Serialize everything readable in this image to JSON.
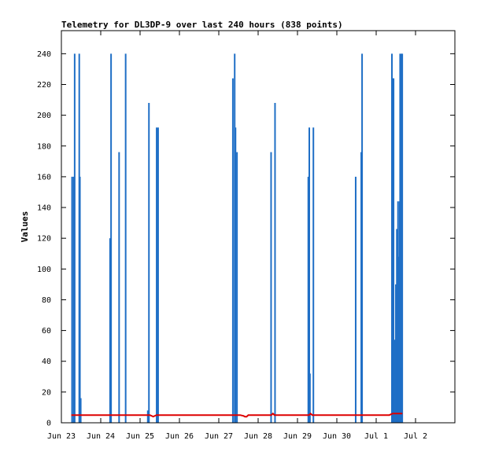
{
  "chart_data": {
    "type": "bar",
    "title": "Telemetry for DL3DP-9 over last 240 hours (838 points)",
    "xlabel": "",
    "ylabel": "Values",
    "xlim": [
      0,
      240
    ],
    "ylim": [
      0,
      255
    ],
    "x_ticks": [
      {
        "x": 0,
        "label": "Jun 23"
      },
      {
        "x": 24,
        "label": "Jun 24"
      },
      {
        "x": 48,
        "label": "Jun 25"
      },
      {
        "x": 72,
        "label": "Jun 26"
      },
      {
        "x": 96,
        "label": "Jun 27"
      },
      {
        "x": 120,
        "label": "Jun 28"
      },
      {
        "x": 144,
        "label": "Jun 29"
      },
      {
        "x": 168,
        "label": "Jun 30"
      },
      {
        "x": 192,
        "label": "Jul 1"
      },
      {
        "x": 216,
        "label": "Jul 2"
      }
    ],
    "y_ticks": [
      0,
      20,
      40,
      60,
      80,
      100,
      120,
      140,
      160,
      180,
      200,
      220,
      240
    ],
    "grid": false,
    "colors": {
      "bars": "#1f6fc6",
      "line": "#dd0000",
      "baseline": "#000000",
      "frame": "#000000"
    },
    "series": [
      {
        "type": "bar",
        "values": [
          {
            "x": 6.5,
            "y": 160
          },
          {
            "x": 7.5,
            "y": 160
          },
          {
            "x": 8.1,
            "y": 240
          },
          {
            "x": 10.9,
            "y": 240
          },
          {
            "x": 11.3,
            "y": 160
          },
          {
            "x": 11.8,
            "y": 16
          },
          {
            "x": 29.7,
            "y": 120
          },
          {
            "x": 30.3,
            "y": 240
          },
          {
            "x": 35.2,
            "y": 176
          },
          {
            "x": 39.2,
            "y": 240
          },
          {
            "x": 52.7,
            "y": 8
          },
          {
            "x": 53.4,
            "y": 208
          },
          {
            "x": 58.1,
            "y": 192
          },
          {
            "x": 59.0,
            "y": 192
          },
          {
            "x": 104.6,
            "y": 224
          },
          {
            "x": 105.7,
            "y": 240
          },
          {
            "x": 106.2,
            "y": 192
          },
          {
            "x": 107.1,
            "y": 176
          },
          {
            "x": 127.9,
            "y": 176
          },
          {
            "x": 130.3,
            "y": 208
          },
          {
            "x": 150.6,
            "y": 160
          },
          {
            "x": 151.2,
            "y": 192
          },
          {
            "x": 151.6,
            "y": 32
          },
          {
            "x": 153.7,
            "y": 192
          },
          {
            "x": 179.5,
            "y": 160
          },
          {
            "x": 182.9,
            "y": 176
          },
          {
            "x": 183.4,
            "y": 240
          },
          {
            "x": 201.6,
            "y": 240
          },
          {
            "x": 202.3,
            "y": 224
          },
          {
            "x": 202.6,
            "y": 224
          },
          {
            "x": 203.2,
            "y": 54
          },
          {
            "x": 203.5,
            "y": 18
          },
          {
            "x": 204.0,
            "y": 90
          },
          {
            "x": 204.6,
            "y": 126
          },
          {
            "x": 205.3,
            "y": 144
          },
          {
            "x": 205.9,
            "y": 108
          },
          {
            "x": 206.3,
            "y": 144
          },
          {
            "x": 206.6,
            "y": 240
          },
          {
            "x": 207.0,
            "y": 36
          },
          {
            "x": 207.4,
            "y": 240
          },
          {
            "x": 207.9,
            "y": 240
          }
        ]
      },
      {
        "type": "line",
        "points": [
          [
            6,
            5
          ],
          [
            6.1,
            5
          ],
          [
            54,
            5
          ],
          [
            56,
            4
          ],
          [
            58,
            5
          ],
          [
            59,
            5
          ],
          [
            109,
            5
          ],
          [
            111,
            4.5
          ],
          [
            112,
            4
          ],
          [
            113,
            4
          ],
          [
            114,
            5
          ],
          [
            128,
            5
          ],
          [
            129,
            6
          ],
          [
            130,
            5
          ],
          [
            151,
            5
          ],
          [
            152,
            6
          ],
          [
            153,
            5
          ],
          [
            200,
            5
          ],
          [
            202,
            6
          ],
          [
            208,
            6
          ]
        ]
      },
      {
        "type": "line",
        "points": [
          [
            0,
            0
          ],
          [
            240,
            0
          ]
        ]
      }
    ]
  }
}
